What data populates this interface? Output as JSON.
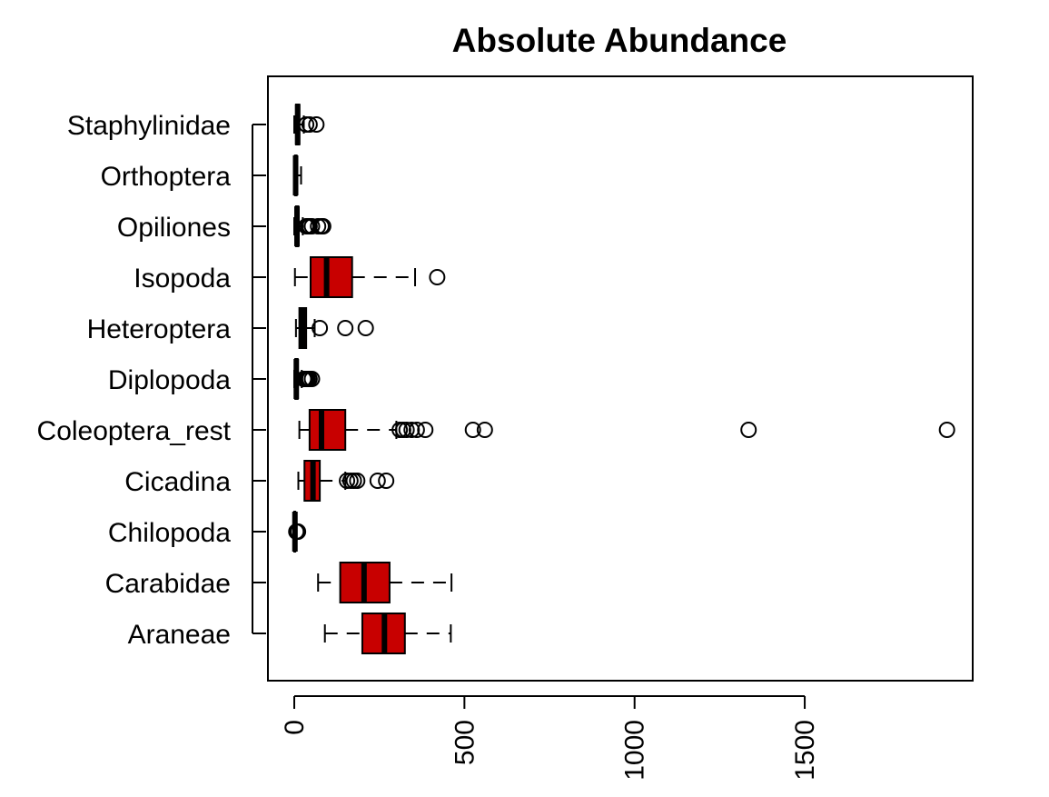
{
  "chart_data": {
    "type": "boxplot",
    "orientation": "horizontal",
    "title": "Absolute Abundance",
    "xlabel": "",
    "ylabel": "",
    "xlim": [
      -80,
      2000
    ],
    "x_ticks": [
      0,
      500,
      1000,
      1500
    ],
    "x_tick_labels": [
      "0",
      "500",
      "1000",
      "1500"
    ],
    "grid": false,
    "legend": "none",
    "box_color": "#c80000",
    "categories": [
      "Araneae",
      "Carabidae",
      "Chilopoda",
      "Cicadina",
      "Coleoptera_rest",
      "Diplopoda",
      "Heteroptera",
      "Isopoda",
      "Opiliones",
      "Orthoptera",
      "Staphylinidae"
    ],
    "boxes": [
      {
        "name": "Araneae",
        "whisker_low": 90,
        "q1": 200,
        "median": 265,
        "q3": 325,
        "whisker_high": 460,
        "outliers": []
      },
      {
        "name": "Carabidae",
        "whisker_low": 70,
        "q1": 135,
        "median": 205,
        "q3": 280,
        "whisker_high": 462,
        "outliers": []
      },
      {
        "name": "Chilopoda",
        "whisker_low": 0,
        "q1": 0,
        "median": 2,
        "q3": 3,
        "whisker_high": 7,
        "outliers": [
          6,
          8,
          9,
          10,
          11
        ]
      },
      {
        "name": "Cicadina",
        "whisker_low": 12,
        "q1": 30,
        "median": 55,
        "q3": 75,
        "whisker_high": 150,
        "outliers": [
          155,
          165,
          175,
          185,
          245,
          270
        ]
      },
      {
        "name": "Coleoptera_rest",
        "whisker_low": 15,
        "q1": 45,
        "median": 80,
        "q3": 150,
        "whisker_high": 300,
        "outliers": [
          310,
          320,
          330,
          345,
          360,
          385,
          525,
          560,
          1335,
          1918
        ]
      },
      {
        "name": "Diplopoda",
        "whisker_low": 0,
        "q1": 3,
        "median": 6,
        "q3": 10,
        "whisker_high": 22,
        "outliers": [
          28,
          32,
          36,
          40,
          45,
          52
        ]
      },
      {
        "name": "Heteroptera",
        "whisker_low": 5,
        "q1": 15,
        "median": 25,
        "q3": 35,
        "whisker_high": 60,
        "outliers": [
          75,
          150,
          210
        ]
      },
      {
        "name": "Isopoda",
        "whisker_low": 2,
        "q1": 48,
        "median": 95,
        "q3": 170,
        "whisker_high": 355,
        "outliers": [
          420
        ]
      },
      {
        "name": "Opiliones",
        "whisker_low": 0,
        "q1": 5,
        "median": 8,
        "q3": 12,
        "whisker_high": 25,
        "outliers": [
          35,
          40,
          45,
          52,
          70,
          80,
          85
        ]
      },
      {
        "name": "Orthoptera",
        "whisker_low": 0,
        "q1": 2,
        "median": 4,
        "q3": 7,
        "whisker_high": 20,
        "outliers": []
      },
      {
        "name": "Staphylinidae",
        "whisker_low": 0,
        "q1": 5,
        "median": 10,
        "q3": 15,
        "whisker_high": 28,
        "outliers": [
          35,
          45,
          65
        ]
      }
    ]
  }
}
